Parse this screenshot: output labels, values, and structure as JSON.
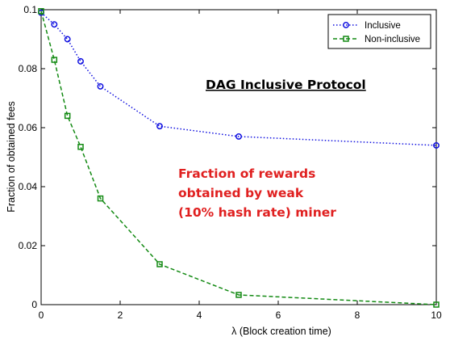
{
  "chart_data": {
    "type": "line",
    "title": "",
    "xlabel": "λ (Block creation time)",
    "ylabel": "Fraction of obtained fees",
    "xlim": [
      0,
      10
    ],
    "ylim": [
      0,
      0.1
    ],
    "x_ticks": [
      "0",
      "2",
      "4",
      "6",
      "8",
      "10"
    ],
    "y_ticks": [
      "0",
      "0.02",
      "0.04",
      "0.06",
      "0.08",
      "0.1"
    ],
    "grid": false,
    "legend_position": "top-right",
    "series": [
      {
        "name": "Inclusive",
        "color": "#1010e0",
        "line_style": "dotted",
        "marker": "circle",
        "x": [
          0,
          0.333,
          0.667,
          1,
          1.5,
          3,
          5,
          10
        ],
        "y": [
          0.099,
          0.095,
          0.09,
          0.0825,
          0.074,
          0.0605,
          0.057,
          0.054
        ]
      },
      {
        "name": "Non-inclusive",
        "color": "#138a13",
        "line_style": "dashed",
        "marker": "square",
        "x": [
          0,
          0.333,
          0.667,
          1,
          1.5,
          3,
          5,
          10
        ],
        "y": [
          0.0995,
          0.083,
          0.064,
          0.0535,
          0.036,
          0.0137,
          0.0033,
          0.0
        ]
      }
    ],
    "annotations": {
      "title": "DAG Inclusive Protocol",
      "note_lines": [
        "Fraction of rewards",
        "obtained by weak",
        "(10% hash rate) miner"
      ]
    }
  }
}
